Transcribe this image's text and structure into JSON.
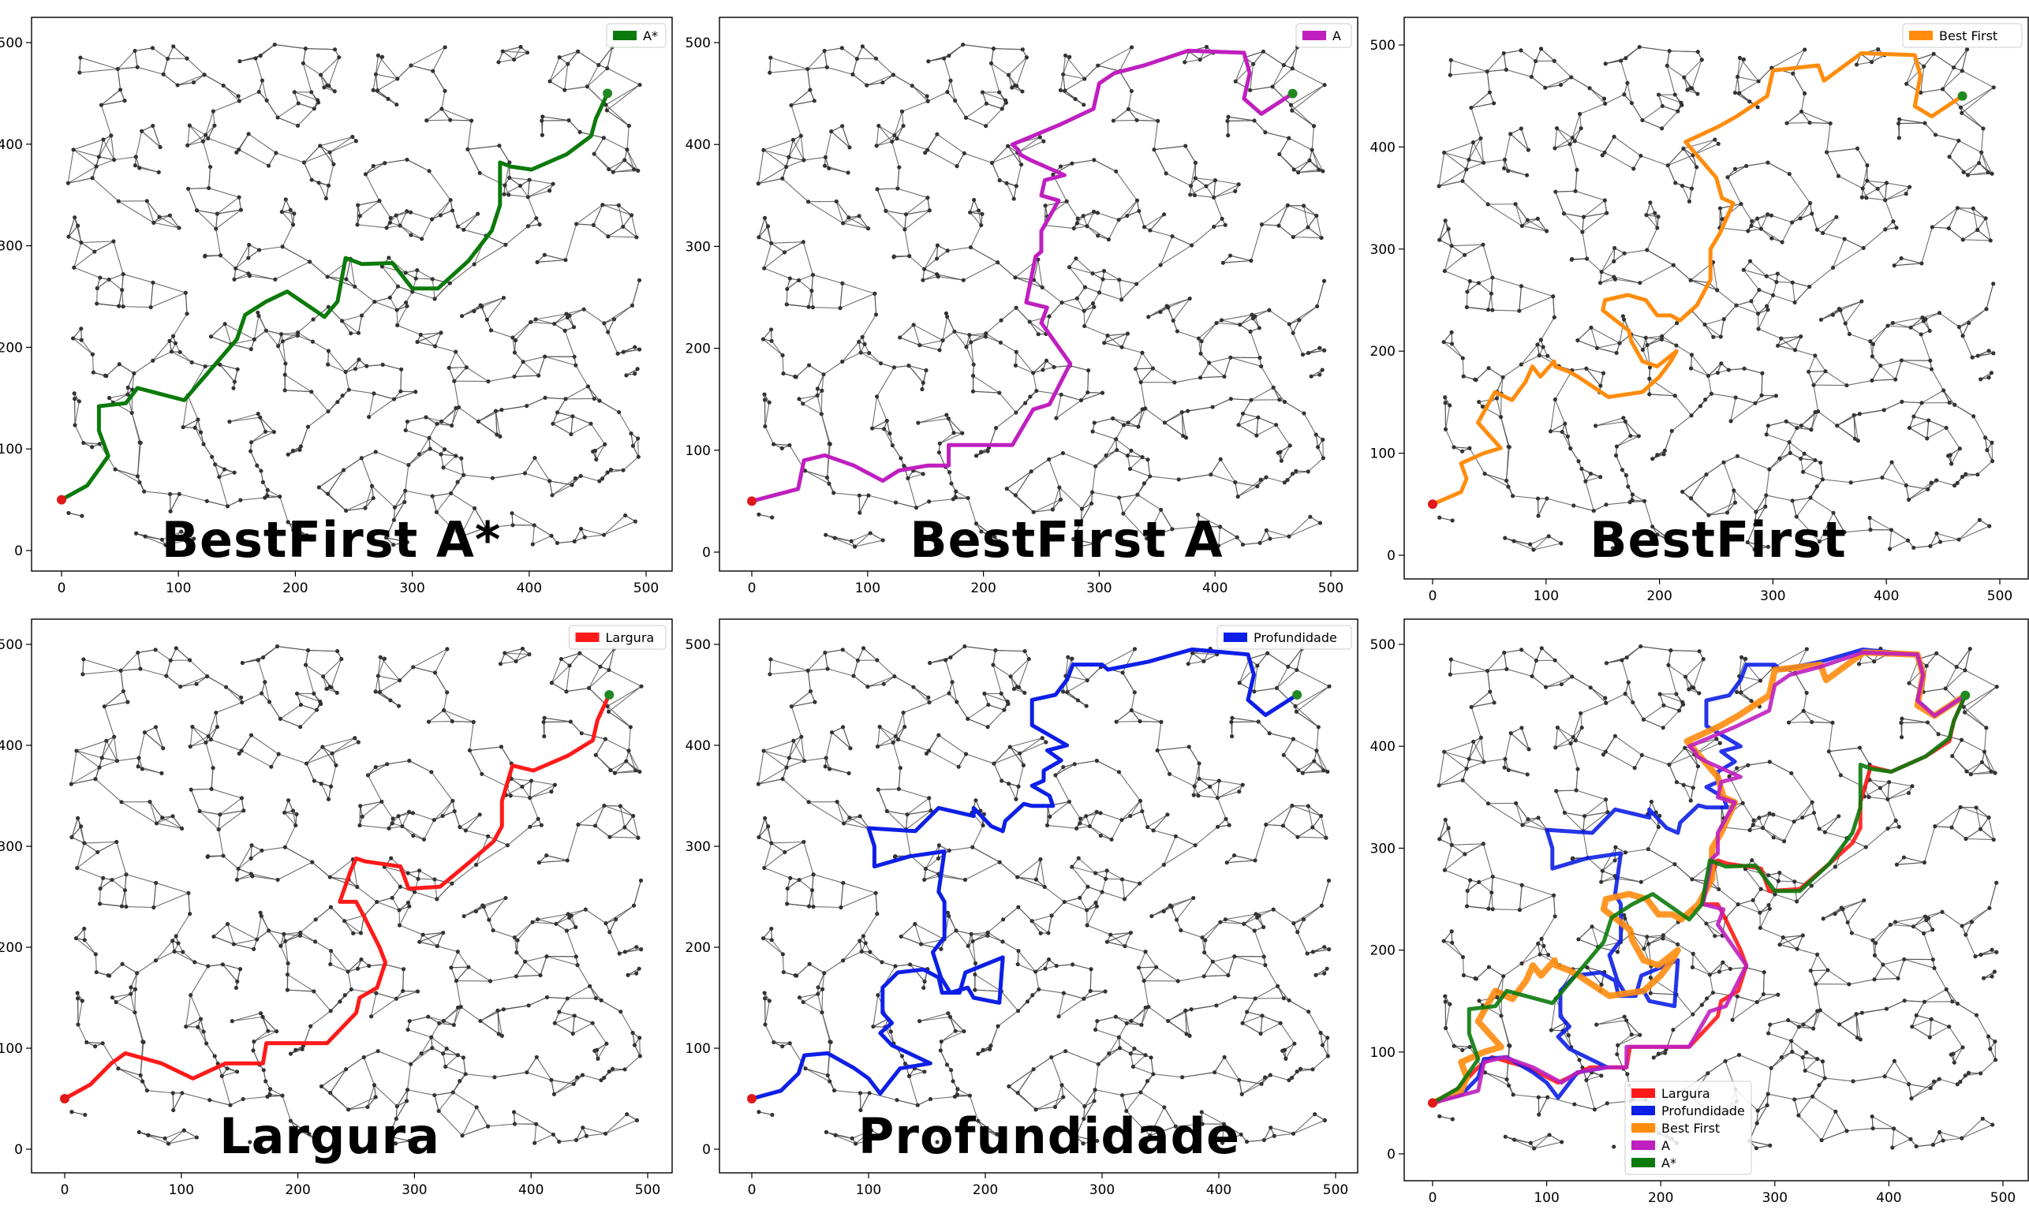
{
  "chart_data": [
    {
      "type": "line",
      "title": "BestFirst A*",
      "xlim": [
        0,
        500
      ],
      "ylim": [
        0,
        500
      ],
      "xticks": [
        0,
        100,
        200,
        300,
        400,
        500
      ],
      "yticks": [
        0,
        100,
        200,
        300,
        400,
        500
      ],
      "start": [
        0,
        50
      ],
      "goal": [
        467,
        450
      ],
      "legend": [
        {
          "label": "A*",
          "color": "#0b7a0b"
        }
      ],
      "series": [
        {
          "name": "A*",
          "color": "#0b7a0b",
          "x": [
            0,
            22,
            32,
            40,
            32,
            32,
            55,
            65,
            105,
            150,
            157,
            175,
            193,
            225,
            236,
            243,
            257,
            283,
            300,
            322,
            348,
            368,
            375,
            375,
            384,
            402,
            432,
            453,
            457,
            467
          ],
          "y": [
            50,
            64,
            80,
            93,
            118,
            142,
            145,
            160,
            148,
            208,
            232,
            245,
            255,
            230,
            245,
            288,
            282,
            283,
            258,
            258,
            285,
            315,
            340,
            382,
            378,
            375,
            390,
            408,
            425,
            450
          ]
        }
      ]
    },
    {
      "type": "line",
      "title": "BestFirst A",
      "xlim": [
        0,
        500
      ],
      "ylim": [
        0,
        500
      ],
      "xticks": [
        0,
        100,
        200,
        300,
        400,
        500
      ],
      "yticks": [
        0,
        100,
        200,
        300,
        400,
        500
      ],
      "start": [
        0,
        50
      ],
      "goal": [
        467,
        450
      ],
      "legend": [
        {
          "label": "A",
          "color": "#bf1fbf"
        }
      ],
      "series": [
        {
          "name": "A",
          "color": "#bf1fbf",
          "x": [
            0,
            40,
            45,
            63,
            88,
            113,
            127,
            152,
            170,
            170,
            185,
            225,
            243,
            257,
            275,
            250,
            255,
            237,
            245,
            250,
            250,
            265,
            250,
            253,
            270,
            240,
            232,
            230,
            225,
            267,
            295,
            300,
            313,
            340,
            377,
            425,
            430,
            425,
            440,
            467
          ],
          "y": [
            50,
            62,
            90,
            95,
            85,
            70,
            80,
            85,
            85,
            105,
            105,
            105,
            140,
            145,
            185,
            225,
            240,
            245,
            290,
            295,
            315,
            345,
            350,
            365,
            370,
            385,
            390,
            395,
            400,
            420,
            435,
            460,
            470,
            478,
            492,
            490,
            470,
            445,
            430,
            450
          ]
        }
      ]
    },
    {
      "type": "line",
      "title": "BestFirst",
      "xlim": [
        0,
        500
      ],
      "ylim": [
        0,
        500
      ],
      "xticks": [
        0,
        100,
        200,
        300,
        400,
        500
      ],
      "yticks": [
        0,
        100,
        200,
        300,
        400,
        500
      ],
      "start": [
        0,
        50
      ],
      "goal": [
        467,
        450
      ],
      "legend": [
        {
          "label": "Best First",
          "color": "#ff8c0e"
        }
      ],
      "series": [
        {
          "name": "Best First",
          "color": "#ff8c0e",
          "x": [
            0,
            25,
            30,
            25,
            45,
            60,
            40,
            55,
            70,
            82,
            88,
            95,
            107,
            108,
            120,
            128,
            155,
            185,
            200,
            210,
            215,
            198,
            185,
            175,
            173,
            150,
            152,
            172,
            188,
            198,
            210,
            218,
            233,
            245,
            245,
            253,
            265,
            255,
            250,
            223,
            252,
            268,
            295,
            300,
            340,
            345,
            378,
            425,
            430,
            425,
            440,
            467
          ],
          "y": [
            50,
            62,
            75,
            90,
            100,
            105,
            130,
            160,
            152,
            170,
            185,
            175,
            190,
            185,
            180,
            175,
            155,
            160,
            175,
            190,
            200,
            185,
            190,
            210,
            220,
            240,
            250,
            255,
            250,
            235,
            235,
            230,
            245,
            270,
            300,
            315,
            345,
            350,
            370,
            405,
            420,
            430,
            450,
            475,
            480,
            465,
            492,
            490,
            470,
            440,
            430,
            450
          ]
        }
      ]
    },
    {
      "type": "line",
      "title": "Largura",
      "xlim": [
        0,
        500
      ],
      "ylim": [
        0,
        500
      ],
      "xticks": [
        0,
        100,
        200,
        300,
        400,
        500
      ],
      "yticks": [
        0,
        100,
        200,
        300,
        400,
        500
      ],
      "start": [
        0,
        50
      ],
      "goal": [
        467,
        450
      ],
      "legend": [
        {
          "label": "Largura",
          "color": "#ff1a1a"
        }
      ],
      "series": [
        {
          "name": "Largura",
          "color": "#ff1a1a",
          "x": [
            0,
            22,
            40,
            52,
            83,
            110,
            138,
            170,
            173,
            225,
            250,
            253,
            268,
            275,
            270,
            257,
            250,
            236,
            245,
            250,
            258,
            288,
            295,
            322,
            348,
            368,
            375,
            375,
            384,
            402,
            432,
            453,
            457,
            467
          ],
          "y": [
            50,
            64,
            85,
            95,
            85,
            70,
            85,
            85,
            105,
            105,
            135,
            150,
            160,
            185,
            200,
            230,
            245,
            245,
            275,
            288,
            285,
            280,
            258,
            260,
            285,
            305,
            320,
            345,
            380,
            375,
            390,
            405,
            425,
            450
          ]
        }
      ]
    },
    {
      "type": "line",
      "title": "Profundidade",
      "xlim": [
        0,
        500
      ],
      "ylim": [
        0,
        500
      ],
      "xticks": [
        0,
        100,
        200,
        300,
        400,
        500
      ],
      "yticks": [
        0,
        100,
        200,
        300,
        400,
        500
      ],
      "start": [
        0,
        50
      ],
      "goal": [
        467,
        450
      ],
      "legend": [
        {
          "label": "Profundidade",
          "color": "#0d1fe6"
        }
      ],
      "series": [
        {
          "name": "Profundidade",
          "color": "#0d1fe6",
          "x": [
            0,
            25,
            40,
            45,
            65,
            88,
            100,
            110,
            127,
            153,
            120,
            110,
            120,
            112,
            112,
            125,
            147,
            160,
            163,
            178,
            183,
            215,
            212,
            190,
            185,
            170,
            162,
            155,
            165,
            165,
            160,
            165,
            135,
            105,
            105,
            100,
            140,
            160,
            190,
            190,
            205,
            215,
            217,
            233,
            240,
            258,
            255,
            240,
            250,
            250,
            265,
            253,
            270,
            240,
            240,
            260,
            270,
            275,
            300,
            305,
            340,
            377,
            425,
            430,
            425,
            440,
            467
          ],
          "y": [
            50,
            58,
            75,
            93,
            95,
            80,
            70,
            55,
            80,
            85,
            103,
            115,
            125,
            135,
            160,
            175,
            178,
            170,
            155,
            155,
            175,
            190,
            145,
            150,
            160,
            155,
            170,
            195,
            210,
            245,
            255,
            295,
            290,
            280,
            300,
            318,
            315,
            338,
            330,
            338,
            320,
            315,
            325,
            342,
            340,
            340,
            350,
            360,
            365,
            375,
            385,
            395,
            400,
            420,
            445,
            450,
            465,
            480,
            480,
            475,
            483,
            495,
            490,
            470,
            445,
            430,
            450
          ]
        }
      ]
    },
    {
      "type": "line",
      "title": "",
      "xlim": [
        0,
        500
      ],
      "ylim": [
        0,
        500
      ],
      "xticks": [
        0,
        100,
        200,
        300,
        400,
        500
      ],
      "yticks": [
        0,
        100,
        200,
        300,
        400,
        500
      ],
      "start": [
        0,
        50
      ],
      "goal": [
        467,
        450
      ],
      "legend": [
        {
          "label": "Largura",
          "color": "#ff1a1a"
        },
        {
          "label": "Profundidade",
          "color": "#0d1fe6"
        },
        {
          "label": "Best First",
          "color": "#ff8c0e"
        },
        {
          "label": "A",
          "color": "#bf1fbf"
        },
        {
          "label": "A*",
          "color": "#0b7a0b"
        }
      ],
      "series": [
        {
          "ref": 3,
          "name": "Largura",
          "color": "#ff1a1a"
        },
        {
          "ref": 4,
          "name": "Profundidade",
          "color": "#0d1fe6"
        },
        {
          "ref": 2,
          "name": "Best First",
          "color": "#ff8c0e"
        },
        {
          "ref": 1,
          "name": "A",
          "color": "#bf1fbf"
        },
        {
          "ref": 0,
          "name": "A*",
          "color": "#0b7a0b"
        }
      ]
    }
  ]
}
